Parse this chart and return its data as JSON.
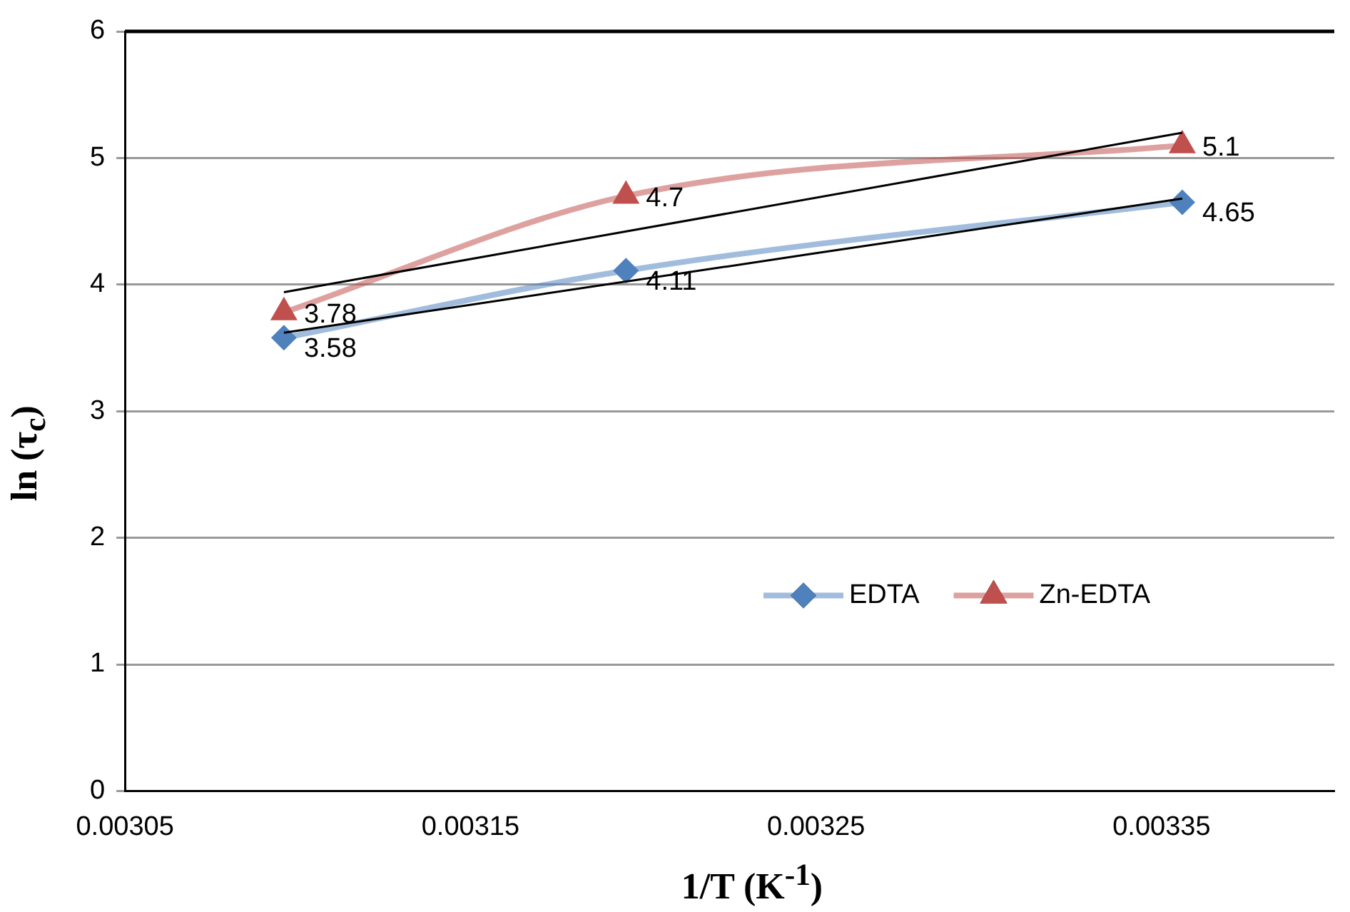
{
  "chart_data": {
    "type": "line",
    "xlabel": "1/T (K$^{-1}$)",
    "ylabel": "ln (τ$_{c}$)",
    "xlim": [
      0.00305,
      0.0034
    ],
    "xticks": [
      0.00305,
      0.00315,
      0.00325,
      0.00335
    ],
    "ylim": [
      0,
      6
    ],
    "yticks": [
      0,
      1,
      2,
      3,
      4,
      5,
      6
    ],
    "grid": "y",
    "legend": "bottom right",
    "series": [
      {
        "name": "EDTA",
        "color": "#4f81bd",
        "marker": "diamond",
        "x": [
          0.003096,
          0.003195,
          0.003356
        ],
        "values": [
          3.58,
          4.11,
          4.65
        ],
        "value_labels": [
          "3.58",
          "4.11",
          "4.65"
        ]
      },
      {
        "name": "Zn-EDTA",
        "color": "#c0504d",
        "marker": "triangle",
        "x": [
          0.003096,
          0.003195,
          0.003356
        ],
        "values": [
          3.78,
          4.7,
          5.1
        ],
        "value_labels": [
          "3.78",
          "4.7",
          "5.1"
        ]
      },
      {
        "color": "#000000",
        "marker": "none",
        "x": [
          0.003096,
          0.003356
        ],
        "values": [
          3.62,
          4.68
        ]
      },
      {
        "color": "#000000",
        "marker": "none",
        "x": [
          0.003096,
          0.003356
        ],
        "values": [
          3.94,
          5.2
        ]
      }
    ]
  }
}
